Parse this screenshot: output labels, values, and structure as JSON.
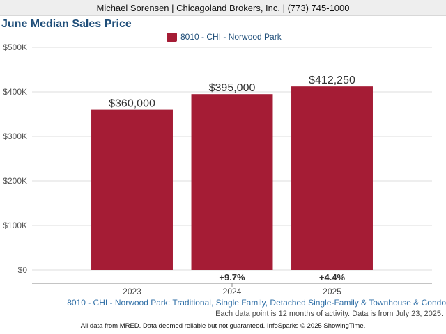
{
  "header": {
    "text": "Michael Sorensen | Chicagoland Brokers, Inc. | (773) 745-1000"
  },
  "footer": {
    "subtitle": "8010 - CHI - Norwood Park: Traditional, Single Family, Detached Single-Family & Townhouse & Condo",
    "note": "Each data point is 12 months of activity. Data is from July 23, 2025.",
    "disclaimer": "All data from MRED. Data deemed reliable but not guaranteed. InfoSparks © 2025 ShowingTime."
  },
  "chart_data": {
    "type": "bar",
    "title": "June Median Sales Price",
    "xlabel": "",
    "ylabel": "",
    "categories": [
      "2023",
      "2024",
      "2025"
    ],
    "series": [
      {
        "name": "8010 - CHI - Norwood Park",
        "color": "#a51c35",
        "values": [
          360000,
          395000,
          412250
        ],
        "value_labels": [
          "$360,000",
          "$395,000",
          "$412,250"
        ],
        "change_labels": [
          "",
          "+9.7%",
          "+4.4%"
        ]
      }
    ],
    "ylim": [
      0,
      500000
    ],
    "yticks": [
      0,
      100000,
      200000,
      300000,
      400000,
      500000
    ],
    "ytick_labels": [
      "$0",
      "$100K",
      "$200K",
      "$300K",
      "$400K",
      "$500K"
    ],
    "grid": true,
    "legend_position": "top-center"
  }
}
